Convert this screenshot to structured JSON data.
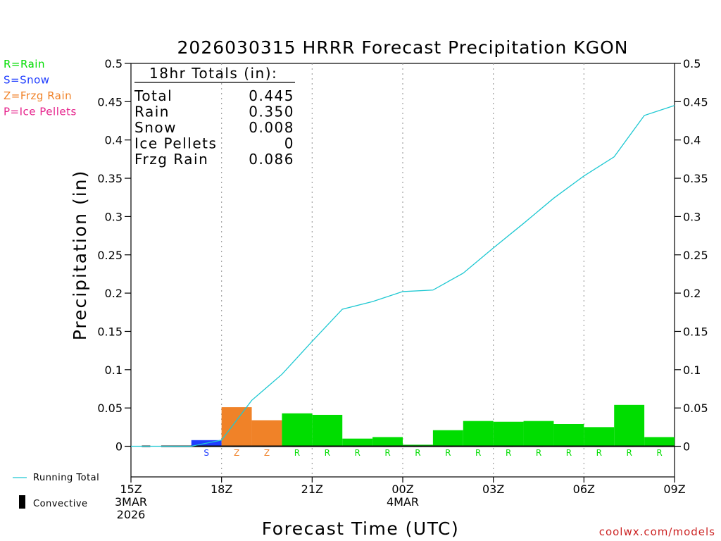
{
  "chart_data": {
    "type": "bar",
    "title": "2026030315 HRRR Forecast Precipitation KGON",
    "xlabel": "Forecast Time (UTC)",
    "ylabel": "Precipitation (in)",
    "ylim": [
      -0.04,
      0.5
    ],
    "xlim": [
      15,
      33
    ],
    "y_ticks": [
      0,
      0.05,
      0.1,
      0.15,
      0.2,
      0.25,
      0.3,
      0.35,
      0.4,
      0.45,
      0.5
    ],
    "y_tick_labels": [
      "0",
      "0.05",
      "0.1",
      "0.15",
      "0.2",
      "0.25",
      "0.3",
      "0.35",
      "0.4",
      "0.45",
      "0.5"
    ],
    "x_ticks": [
      {
        "x": 15,
        "lines": [
          "15Z",
          "3MAR",
          "2026"
        ]
      },
      {
        "x": 18,
        "lines": [
          "18Z"
        ]
      },
      {
        "x": 21,
        "lines": [
          "21Z"
        ]
      },
      {
        "x": 24,
        "lines": [
          "00Z",
          "4MAR"
        ]
      },
      {
        "x": 27,
        "lines": [
          "03Z"
        ]
      },
      {
        "x": 30,
        "lines": [
          "06Z"
        ]
      },
      {
        "x": 33,
        "lines": [
          "09Z"
        ]
      }
    ],
    "grid_x": [
      18,
      21,
      24,
      27,
      30
    ],
    "hours": [
      16,
      17,
      18,
      19,
      20,
      21,
      22,
      23,
      24,
      25,
      26,
      27,
      28,
      29,
      30,
      31,
      32,
      33
    ],
    "hourly_precip": [
      0,
      0,
      0.008,
      0.051,
      0.034,
      0.043,
      0.041,
      0.01,
      0.012,
      0.002,
      0.021,
      0.033,
      0.032,
      0.033,
      0.029,
      0.025,
      0.054,
      0.012
    ],
    "ptype": [
      "",
      "",
      "S",
      "Z",
      "Z",
      "R",
      "R",
      "R",
      "R",
      "R",
      "R",
      "R",
      "R",
      "R",
      "R",
      "R",
      "R",
      "R"
    ],
    "running_total": [
      0,
      0,
      0.008,
      0.06,
      0.094,
      0.137,
      0.179,
      0.189,
      0.202,
      0.204,
      0.226,
      0.259,
      0.291,
      0.324,
      0.353,
      0.378,
      0.432,
      0.445
    ],
    "convective": [
      0,
      0,
      0,
      0,
      0,
      0,
      0,
      0,
      0,
      0,
      0,
      0,
      0,
      0,
      0,
      0,
      0,
      0
    ],
    "legend": [
      {
        "key": "R",
        "label": "R=Rain",
        "color": "#00dd00"
      },
      {
        "key": "S",
        "label": "S=Snow",
        "color": "#1e3cff"
      },
      {
        "key": "Z",
        "label": "Z=Frzg Rain",
        "color": "#f08228"
      },
      {
        "key": "P",
        "label": "P=Ice Pellets",
        "color": "#e6248c"
      }
    ],
    "line_color": "#1ec8d2",
    "totals": {
      "heading": "18hr Totals (in):",
      "rows": [
        {
          "label": "Total",
          "value": "0.445"
        },
        {
          "label": "Rain",
          "value": "0.350"
        },
        {
          "label": "Snow",
          "value": "0.008"
        },
        {
          "label": "Ice Pellets",
          "value": "0"
        },
        {
          "label": "Frzg Rain",
          "value": "0.086"
        }
      ]
    },
    "bottom_legend": {
      "running_total": "Running Total",
      "convective": "Convective"
    },
    "credit": "coolwx.com/models"
  }
}
